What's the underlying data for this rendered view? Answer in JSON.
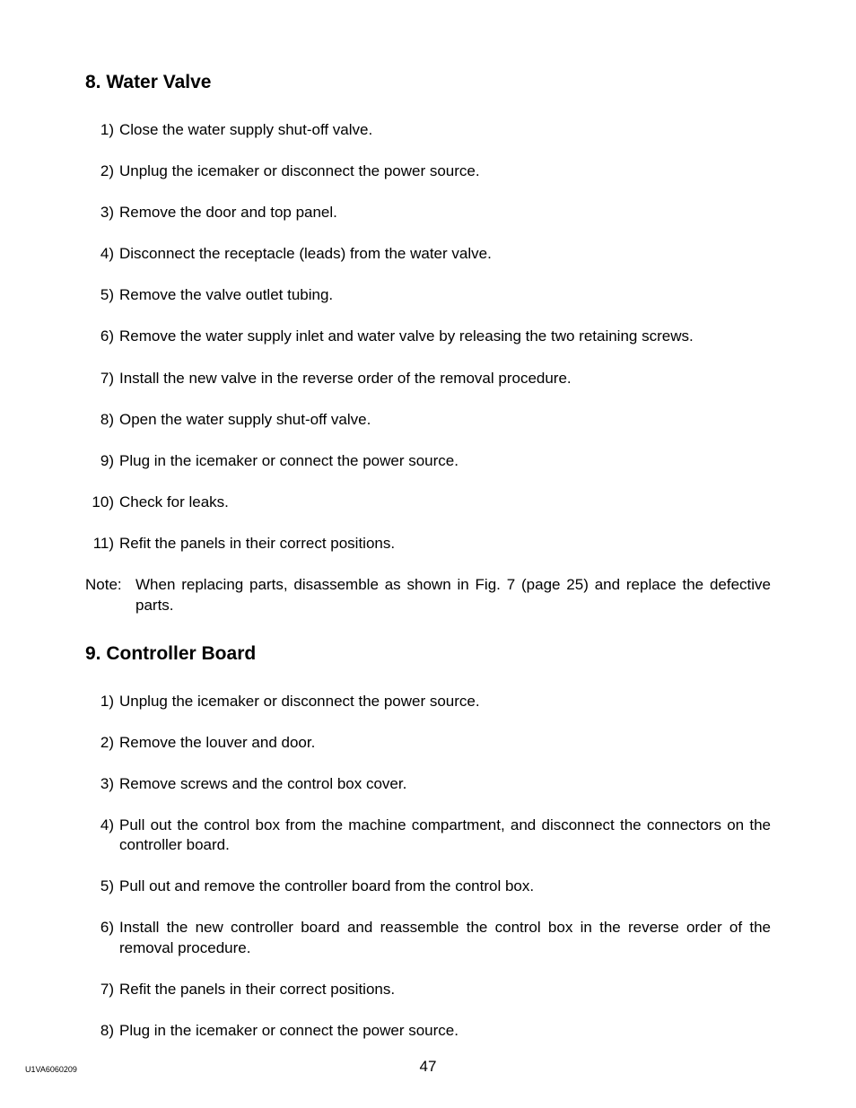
{
  "page": {
    "doc_code": "U1VA6060209",
    "page_number": "47"
  },
  "section8": {
    "heading": "8. Water Valve",
    "items": [
      {
        "num": "1)",
        "text": "Close the water supply shut-off valve."
      },
      {
        "num": "2)",
        "text": "Unplug the icemaker or disconnect the power source."
      },
      {
        "num": "3)",
        "text": "Remove the door and top panel."
      },
      {
        "num": "4)",
        "text": "Disconnect the receptacle (leads) from the water valve."
      },
      {
        "num": "5)",
        "text": "Remove the valve outlet tubing."
      },
      {
        "num": "6)",
        "text": "Remove the water supply inlet and water valve by releasing the two retaining screws."
      },
      {
        "num": "7)",
        "text": "Install the new valve in the reverse order of the removal procedure."
      },
      {
        "num": "8)",
        "text": "Open the water supply shut-off valve."
      },
      {
        "num": "9)",
        "text": "Plug in the icemaker or connect the power source."
      },
      {
        "num": "10)",
        "text": "Check for leaks."
      },
      {
        "num": "11)",
        "text": "Refit the panels in their correct positions."
      }
    ],
    "note_label": "Note:",
    "note_text": "When replacing parts, disassemble as shown in Fig. 7 (page 25) and replace the defective parts."
  },
  "section9": {
    "heading": "9. Controller Board",
    "items": [
      {
        "num": "1)",
        "text": "Unplug the icemaker or disconnect the power source."
      },
      {
        "num": "2)",
        "text": "Remove the louver and door."
      },
      {
        "num": "3)",
        "text": "Remove screws and the control box cover."
      },
      {
        "num": "4)",
        "text": "Pull out the control box from the machine compartment, and disconnect the connectors on the controller board."
      },
      {
        "num": "5)",
        "text": "Pull out and remove the controller board from the control box."
      },
      {
        "num": "6)",
        "text": "Install the new controller board and reassemble the control box in the reverse order of the removal procedure."
      },
      {
        "num": "7)",
        "text": "Refit the panels in their correct positions."
      },
      {
        "num": "8)",
        "text": "Plug in the icemaker or connect the power source."
      }
    ]
  }
}
